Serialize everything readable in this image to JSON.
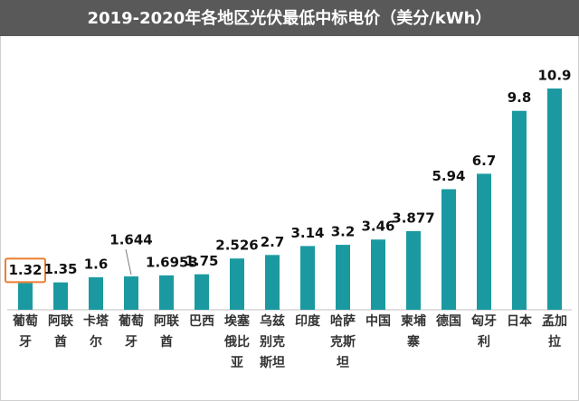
{
  "chart_data": {
    "type": "bar",
    "title": "2019-2020年各地区光伏最低中标电价（美分/kWh）",
    "categories": [
      "葡萄牙",
      "阿联酋",
      "卡塔尔",
      "葡萄牙",
      "阿联酋",
      "巴西",
      "埃塞俄比亚",
      "乌兹别克斯坦",
      "印度",
      "哈萨克斯坦",
      "中国",
      "柬埔寨",
      "德国",
      "匈牙利",
      "日本",
      "孟加拉"
    ],
    "values": [
      1.32,
      1.35,
      1.6,
      1.644,
      1.6953,
      1.75,
      2.526,
      2.7,
      3.14,
      3.2,
      3.46,
      3.877,
      5.94,
      6.7,
      9.8,
      10.9
    ],
    "color": "#1a9aa0",
    "value_label_colors": [
      "#111111",
      "#111111",
      "#111111",
      "#111111",
      "#111111",
      "#111111",
      "#111111",
      "#111111",
      "#111111",
      "#111111",
      "#e02020",
      "#111111",
      "#111111",
      "#111111",
      "#111111",
      "#111111"
    ],
    "boxed_labels": [
      0
    ],
    "box_color": "#ed7d31"
  }
}
